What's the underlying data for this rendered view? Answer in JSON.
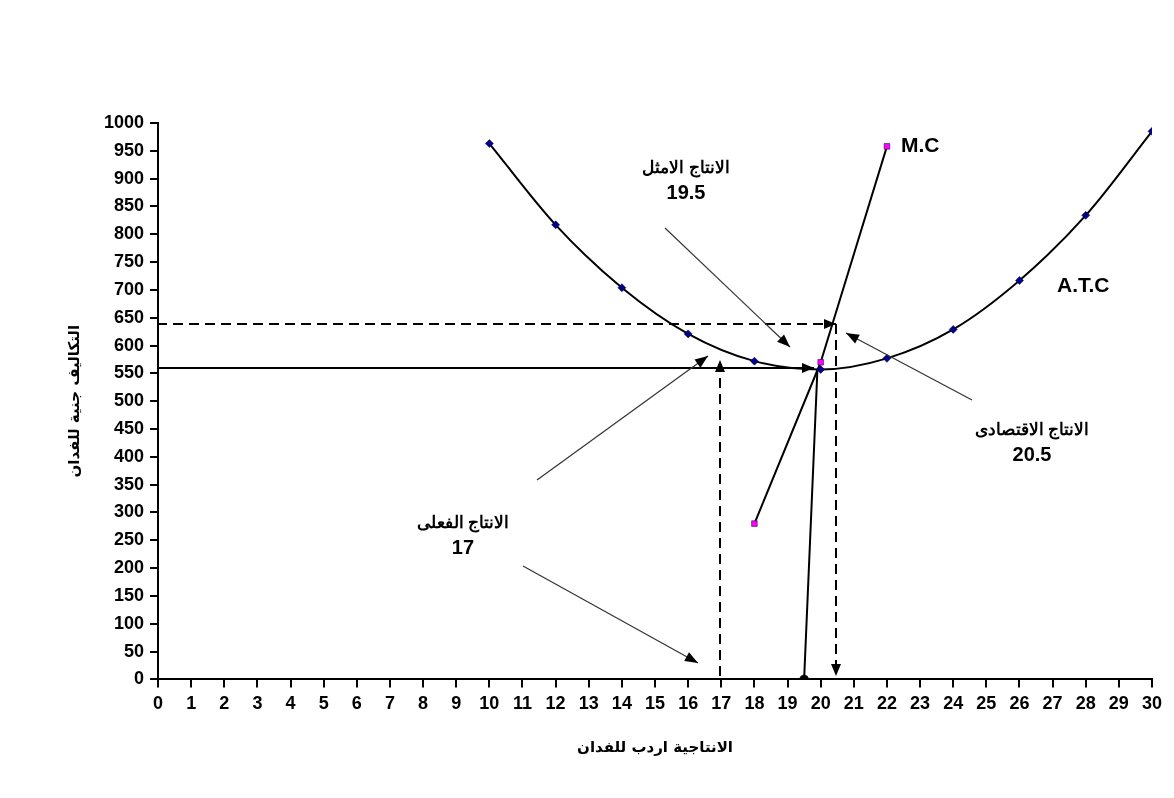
{
  "chart_data": {
    "type": "line",
    "xlabel": "الانتاجية اردب للفدان",
    "ylabel": "التكاليف جنية للفدان",
    "xlim": [
      0,
      30
    ],
    "xticks": [
      0,
      1,
      2,
      3,
      4,
      5,
      6,
      7,
      8,
      9,
      10,
      11,
      12,
      13,
      14,
      15,
      16,
      17,
      18,
      19,
      20,
      21,
      22,
      23,
      24,
      25,
      26,
      27,
      28,
      29,
      30
    ],
    "ylim": [
      0,
      1000
    ],
    "yticks": [
      0,
      50,
      100,
      150,
      200,
      250,
      300,
      350,
      400,
      450,
      500,
      550,
      600,
      650,
      700,
      750,
      800,
      850,
      900,
      950,
      1000
    ],
    "grid": false,
    "legend": false,
    "series": [
      {
        "name": "A.T.C",
        "type": "line",
        "color": "#000000",
        "colors": [
          "#00008b",
          "#00008b",
          "#00008b",
          "#00008b",
          "#00008b",
          "#00008b",
          "#00008b",
          "#00008b",
          "#00008b",
          "#00008b",
          "#00008b"
        ],
        "marker": "diamond",
        "x": [
          10,
          12,
          14,
          16,
          18,
          20,
          22,
          24,
          26,
          28,
          30
        ],
        "values": [
          963,
          817,
          704,
          621,
          572,
          557,
          577,
          629,
          717,
          834,
          985
        ]
      },
      {
        "name": "M.C",
        "type": "line",
        "color": "#000000",
        "colors": [
          "#ff00ff",
          "#ff00ff",
          "#ff00ff"
        ],
        "marker": "square",
        "x": [
          18,
          20,
          22
        ],
        "values": [
          280,
          570,
          958
        ]
      },
      {
        "type": "line",
        "color": "#000000",
        "marker": "none",
        "line_style": "solid",
        "x": [
          19.5,
          19.9
        ],
        "values": [
          0,
          555
        ]
      },
      {
        "type": "scatter",
        "color": "#000000",
        "marker": "circle",
        "x": [
          19.5
        ],
        "values": [
          0
        ]
      }
    ],
    "annotations": [
      "الانتاج الامثل\n19.5",
      "الانتاج الاقتصادى\n20.5",
      "الانتاج الفعلى\n17"
    ]
  }
}
